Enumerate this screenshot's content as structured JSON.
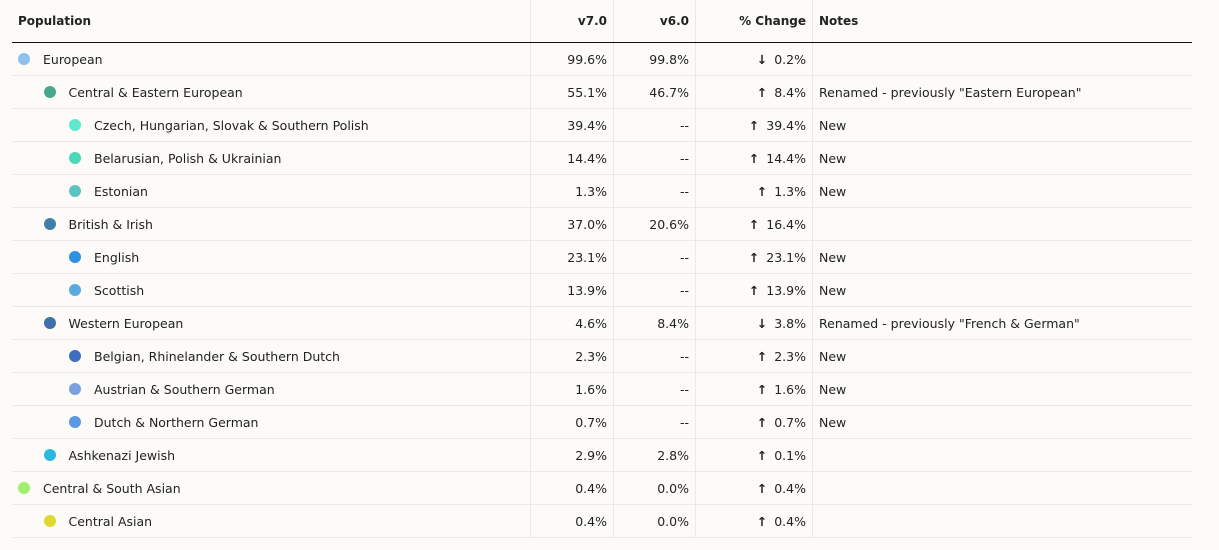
{
  "table": {
    "header": [
      "Population",
      "v7.0",
      "v6.0",
      "% Change",
      "Notes"
    ],
    "rows": [
      {
        "name": "European",
        "level": 0,
        "color": "#8cc0ee",
        "v7": "99.6%",
        "v6": "99.8%",
        "arrow": "↓",
        "change": "0.2%"
      },
      {
        "name": "Central & Eastern European",
        "level": 1,
        "color": "#4aa88a",
        "v7": "55.1%",
        "v6": "46.7%",
        "arrow": "↑",
        "change": "8.4%",
        "note": "Renamed - previously \"Eastern European\""
      },
      {
        "name": "Czech, Hungarian, Slovak & Southern Polish",
        "level": 2,
        "color": "#5ee8d0",
        "v7": "39.4%",
        "v6": "--",
        "arrow": "↑",
        "change": "39.4%",
        "note": "New"
      },
      {
        "name": "Belarusian, Polish & Ukrainian",
        "level": 2,
        "color": "#4ad8b8",
        "v7": "14.4%",
        "v6": "--",
        "arrow": "↑",
        "change": "14.4%",
        "note": "New"
      },
      {
        "name": "Estonian",
        "level": 2,
        "color": "#5cc4c0",
        "v7": "1.3%",
        "v6": "--",
        "arrow": "↑",
        "change": "1.3%",
        "note": "New"
      },
      {
        "name": "British & Irish",
        "level": 1,
        "color": "#3f7fa8",
        "v7": "37.0%",
        "v6": "20.6%",
        "arrow": "↑",
        "change": "16.4%"
      },
      {
        "name": "English",
        "level": 2,
        "color": "#2f8fe0",
        "v7": "23.1%",
        "v6": "--",
        "arrow": "↑",
        "change": "23.1%",
        "note": "New"
      },
      {
        "name": "Scottish",
        "level": 2,
        "color": "#5aaae0",
        "v7": "13.9%",
        "v6": "--",
        "arrow": "↑",
        "change": "13.9%",
        "note": "New"
      },
      {
        "name": "Western European",
        "level": 1,
        "color": "#3f6ea8",
        "v7": "4.6%",
        "v6": "8.4%",
        "arrow": "↓",
        "change": "3.8%",
        "note": "Renamed - previously \"French & German\""
      },
      {
        "name": "Belgian, Rhinelander & Southern Dutch",
        "level": 2,
        "color": "#3d6ec0",
        "v7": "2.3%",
        "v6": "--",
        "arrow": "↑",
        "change": "2.3%",
        "note": "New"
      },
      {
        "name": "Austrian & Southern German",
        "level": 2,
        "color": "#7aa0e0",
        "v7": "1.6%",
        "v6": "--",
        "arrow": "↑",
        "change": "1.6%",
        "note": "New"
      },
      {
        "name": "Dutch & Northern German",
        "level": 2,
        "color": "#5a98e0",
        "v7": "0.7%",
        "v6": "--",
        "arrow": "↑",
        "change": "0.7%",
        "note": "New"
      },
      {
        "name": "Ashkenazi Jewish",
        "level": 1,
        "color": "#2ab8e0",
        "v7": "2.9%",
        "v6": "2.8%",
        "arrow": "↑",
        "change": "0.1%"
      },
      {
        "name": "Central & South Asian",
        "level": 0,
        "color": "#a0f070",
        "v7": "0.4%",
        "v6": "0.0%",
        "arrow": "↑",
        "change": "0.4%"
      },
      {
        "name": "Central Asian",
        "level": 1,
        "color": "#e0d830",
        "v7": "0.4%",
        "v6": "0.0%",
        "arrow": "↑",
        "change": "0.4%"
      }
    ]
  }
}
